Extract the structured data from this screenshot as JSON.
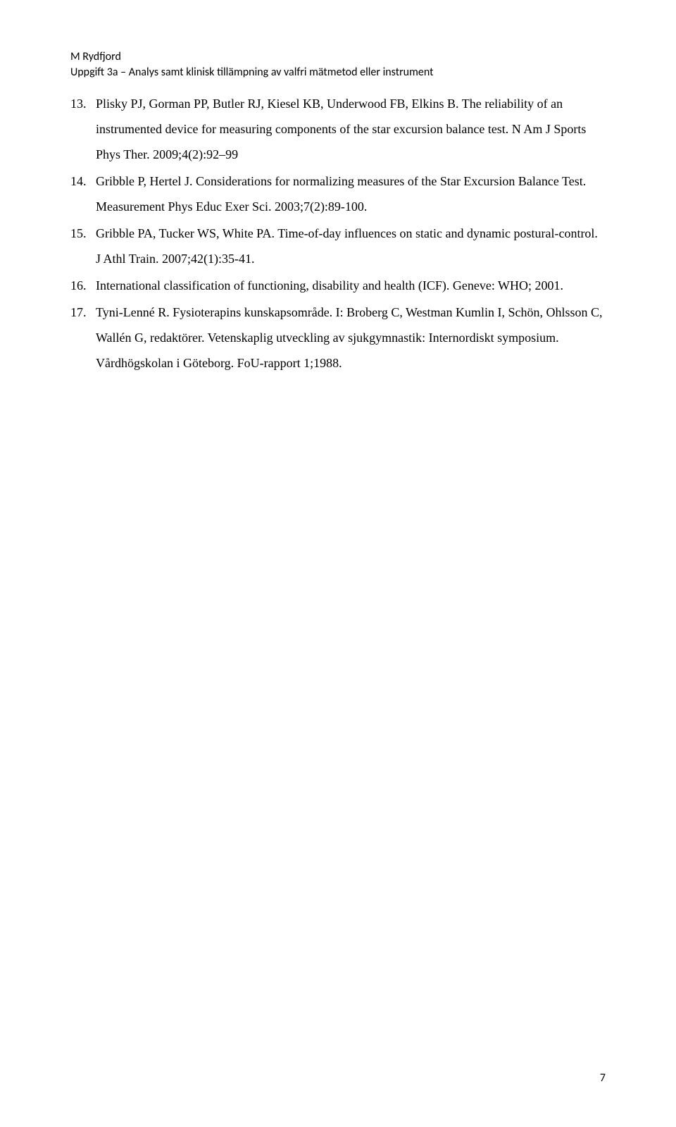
{
  "header": {
    "author": "M Rydfjord",
    "subtitle": "Uppgift 3a – Analys samt klinisk tillämpning av valfri mätmetod eller instrument"
  },
  "references": [
    {
      "number": "13.",
      "text": "Plisky PJ, Gorman PP, Butler RJ, Kiesel KB, Underwood FB, Elkins B. The reliability of an instrumented device for measuring components of the star excursion balance test. N Am J Sports Phys Ther. 2009;4(2):92–99"
    },
    {
      "number": "14.",
      "text": "Gribble P, Hertel J. Considerations for normalizing measures of the Star Excursion Balance Test. Measurement Phys Educ Exer Sci. 2003;7(2):89-100."
    },
    {
      "number": "15.",
      "text": "Gribble PA, Tucker WS, White PA. Time-of-day influences on static and dynamic postural-control. J Athl Train. 2007;42(1):35-41."
    },
    {
      "number": "16.",
      "text": "International classification of functioning, disability and health (ICF). Geneve: WHO; 2001."
    },
    {
      "number": "17.",
      "text": "Tyni-Lenné R. Fysioterapins kunskapsområde. I: Broberg C, Westman Kumlin I, Schön, Ohlsson C, Wallén G, redaktörer. Vetenskaplig utveckling av sjukgymnastik: Internordiskt symposium. Vårdhögskolan i Göteborg. FoU-rapport 1;1988."
    }
  ],
  "pageNumber": "7"
}
